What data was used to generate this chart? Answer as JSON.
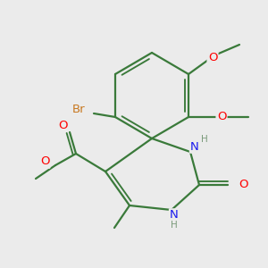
{
  "bg": "#ebebeb",
  "bond_color": "#3a7a3a",
  "bond_width": 1.6,
  "atom_colors": {
    "O": "#ff0000",
    "N": "#1a1aee",
    "Br": "#c87820",
    "H": "#7a9a7a"
  },
  "font_size": 9.5
}
